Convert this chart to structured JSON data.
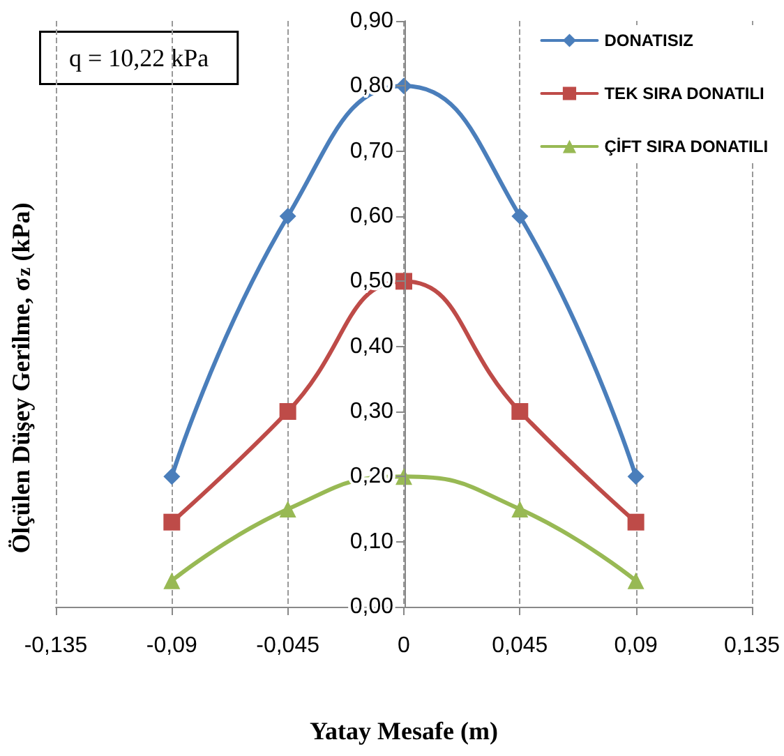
{
  "chart_data": {
    "type": "line",
    "xlabel": "Yatay Mesafe (m)",
    "ylabel": "Ölçülen Düşey Gerilme, σ$_{z}$ (kPa)",
    "annotations": [
      "q = 10,22 kPa"
    ],
    "x": [
      -0.09,
      -0.045,
      0,
      0.045,
      0.09
    ],
    "series": [
      {
        "name": "DONATISIZ",
        "color": "#4a7ebb",
        "marker": "diamond",
        "values": [
          0.2,
          0.6,
          0.8,
          0.6,
          0.2
        ]
      },
      {
        "name": "TEK SIRA DONATILI",
        "color": "#be4b48",
        "marker": "square",
        "values": [
          0.13,
          0.3,
          0.5,
          0.3,
          0.13
        ]
      },
      {
        "name": "ÇİFT SIRA DONATILI",
        "color": "#98b954",
        "marker": "triangle",
        "values": [
          0.04,
          0.15,
          0.2,
          0.15,
          0.04
        ]
      }
    ],
    "xlim": [
      -0.135,
      0.135
    ],
    "xticks": [
      {
        "value": -0.135,
        "label": "-0,135"
      },
      {
        "value": -0.09,
        "label": "-0,09"
      },
      {
        "value": -0.045,
        "label": "-0,045"
      },
      {
        "value": 0,
        "label": "0"
      },
      {
        "value": 0.045,
        "label": "0,045"
      },
      {
        "value": 0.09,
        "label": "0,09"
      },
      {
        "value": 0.135,
        "label": "0,135"
      }
    ],
    "ylim": [
      0,
      0.9
    ],
    "yticks": [
      {
        "value": 0,
        "label": "0,00"
      },
      {
        "value": 0.1,
        "label": "0,10"
      },
      {
        "value": 0.2,
        "label": "0,20"
      },
      {
        "value": 0.3,
        "label": "0,30"
      },
      {
        "value": 0.4,
        "label": "0,40"
      },
      {
        "value": 0.5,
        "label": "0,50"
      },
      {
        "value": 0.6,
        "label": "0,60"
      },
      {
        "value": 0.7,
        "label": "0,70"
      },
      {
        "value": 0.8,
        "label": "0,80"
      },
      {
        "value": 0.9,
        "label": "0,90"
      }
    ],
    "grid": "x",
    "legend": "top right",
    "line_style": "solid"
  }
}
